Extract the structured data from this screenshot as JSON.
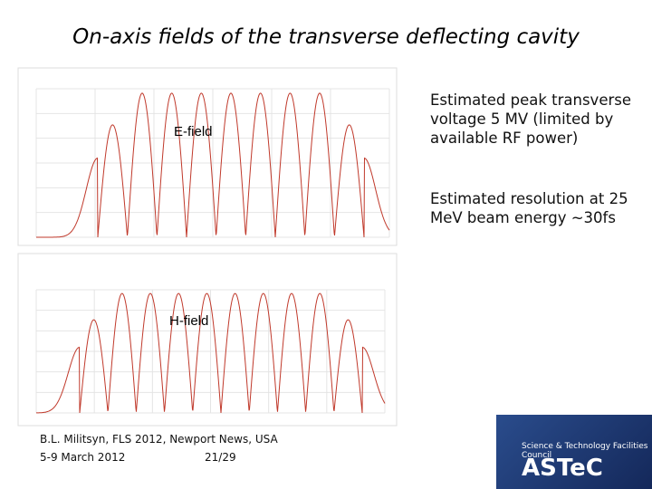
{
  "title": "On-axis fields of the transverse deflecting cavity",
  "plots": [
    {
      "label": "E-field"
    },
    {
      "label": "H-field"
    }
  ],
  "notes": [
    "Estimated peak transverse voltage 5 MV (limited by available RF power)",
    "Estimated resolution at 25 MeV beam energy ~30fs"
  ],
  "footer": {
    "line1": "B.L. Militsyn, FLS 2012, Newport News, USA",
    "date": "5-9 March 2012",
    "page": "21/29"
  },
  "logo": {
    "council": "Science & Technology Facilities Council",
    "name": "ASTeC"
  }
}
